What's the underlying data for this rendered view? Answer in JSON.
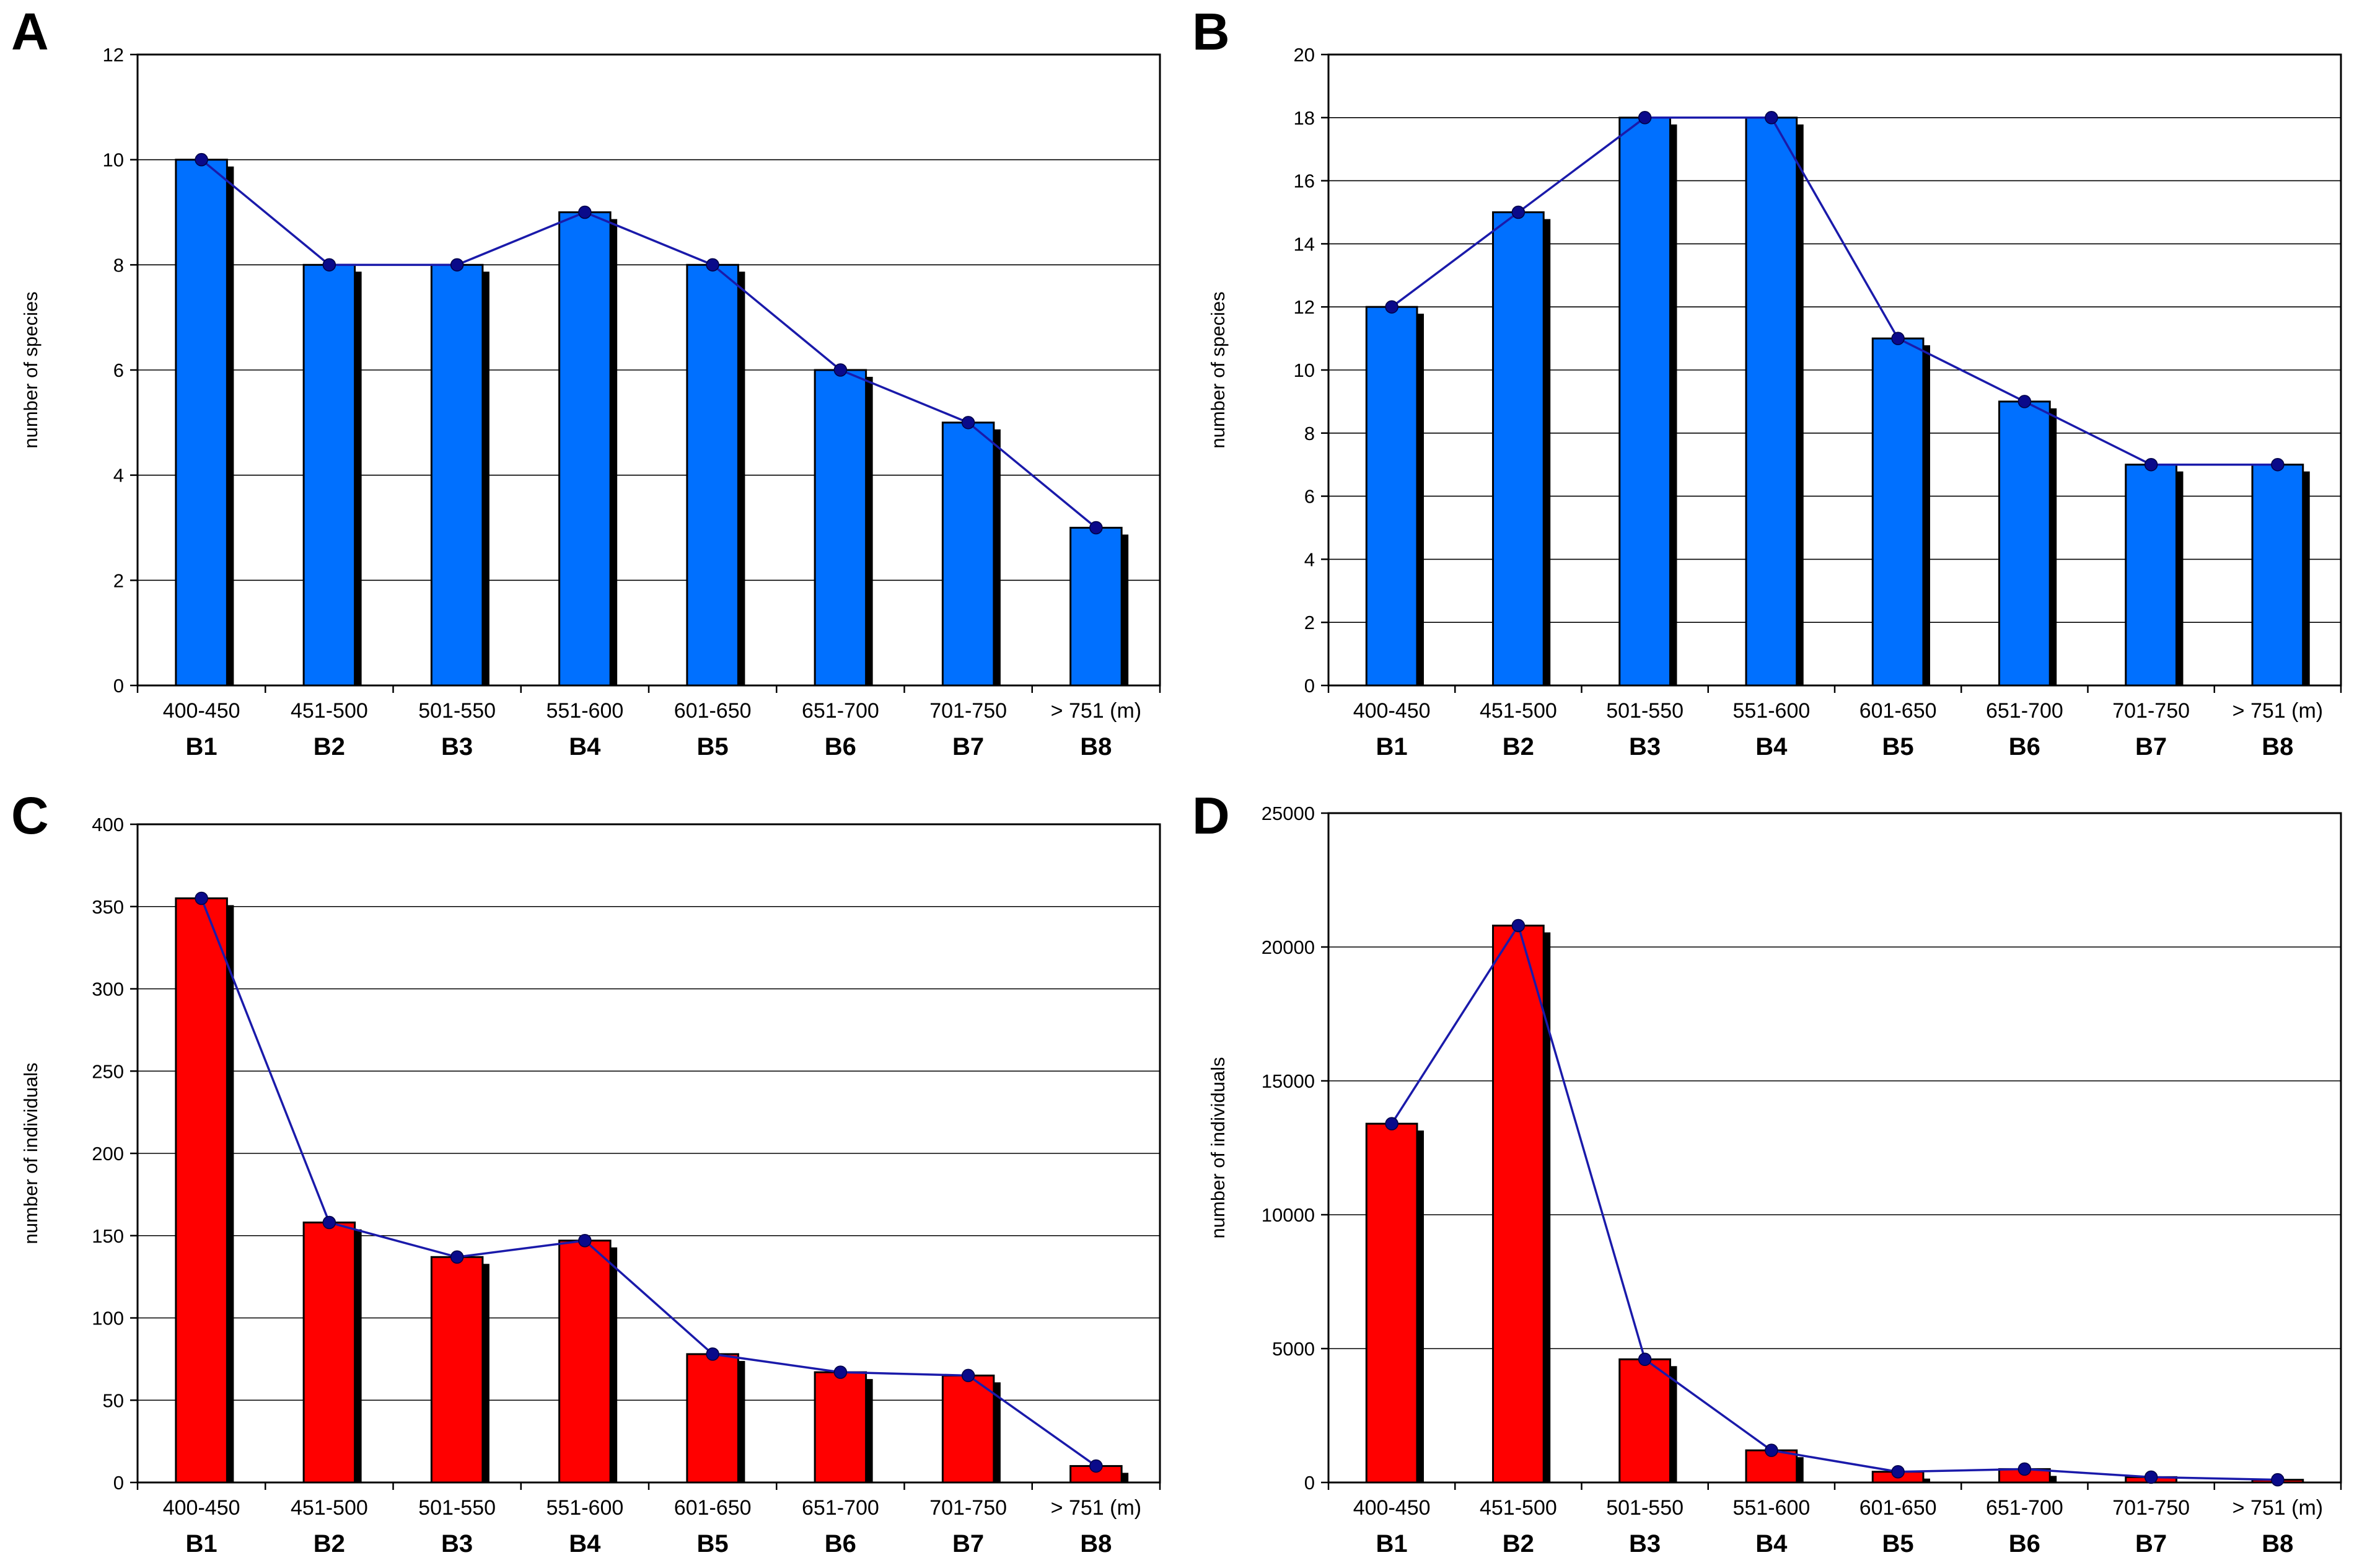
{
  "colors": {
    "blue_bar": "#0070ff",
    "red_bar": "#ff0000",
    "trend_line": "#1a1aaa",
    "trend_point": "#0a0a8a"
  },
  "categories": [
    "400-450",
    "451-500",
    "501-550",
    "551-600",
    "601-650",
    "651-700",
    "701-750",
    "> 751 (m)"
  ],
  "groups": [
    "B1",
    "B2",
    "B3",
    "B4",
    "B5",
    "B6",
    "B7",
    "B8"
  ],
  "chart_data": [
    {
      "panel": "A",
      "type": "bar",
      "overlay": "line",
      "bar_color": "blue",
      "ylabel": "number of species",
      "ylim": [
        0,
        12
      ],
      "yticks": [
        0,
        2,
        4,
        6,
        8,
        10,
        12
      ],
      "grid": true,
      "values": [
        10,
        8,
        8,
        9,
        8,
        6,
        5,
        3
      ]
    },
    {
      "panel": "B",
      "type": "bar",
      "overlay": "line",
      "bar_color": "blue",
      "ylabel": "number of species",
      "ylim": [
        0,
        20
      ],
      "yticks": [
        0,
        2,
        4,
        6,
        8,
        10,
        12,
        14,
        16,
        18,
        20
      ],
      "grid": true,
      "values": [
        12,
        15,
        18,
        18,
        11,
        9,
        7,
        7
      ]
    },
    {
      "panel": "C",
      "type": "bar",
      "overlay": "line",
      "bar_color": "red",
      "ylabel": "number of individuals",
      "ylim": [
        0,
        400
      ],
      "yticks": [
        0,
        50,
        100,
        150,
        200,
        250,
        300,
        350,
        400
      ],
      "grid": true,
      "values": [
        355,
        158,
        137,
        147,
        78,
        67,
        65,
        10
      ]
    },
    {
      "panel": "D",
      "type": "bar",
      "overlay": "line",
      "bar_color": "red",
      "ylabel": "number of individuals",
      "ylim": [
        0,
        25000
      ],
      "yticks": [
        0,
        5000,
        10000,
        15000,
        20000,
        25000
      ],
      "grid": true,
      "values": [
        13400,
        20800,
        4600,
        1200,
        400,
        500,
        200,
        100
      ]
    }
  ]
}
